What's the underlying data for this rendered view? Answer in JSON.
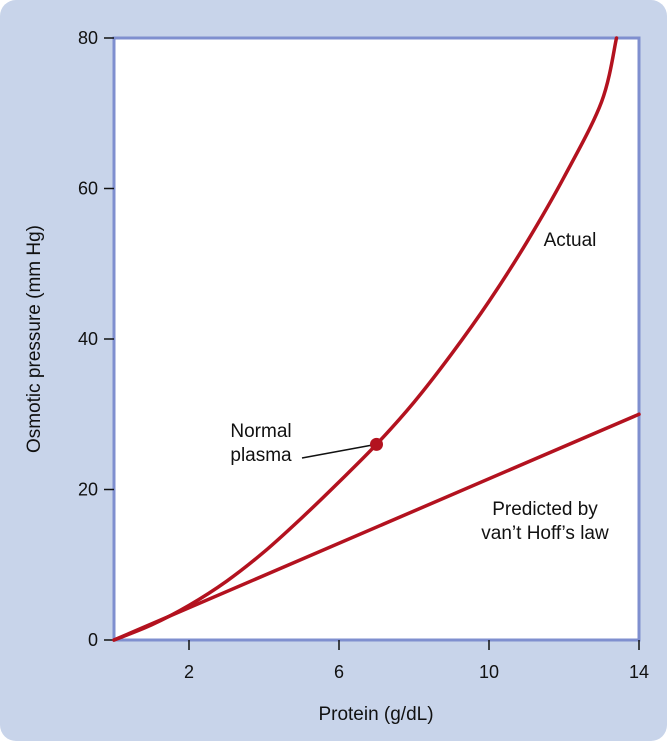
{
  "chart_data": {
    "type": "line",
    "title": "",
    "xlabel": "Protein (g/dL)",
    "ylabel": "Osmotic pressure (mm Hg)",
    "xlim": [
      0,
      14
    ],
    "ylim": [
      0,
      80
    ],
    "x_ticks": [
      2,
      6,
      10,
      14
    ],
    "y_ticks": [
      0,
      20,
      40,
      60,
      80
    ],
    "grid": false,
    "series": [
      {
        "name": "Actual",
        "color": "#b3121f",
        "points": [
          [
            0,
            0
          ],
          [
            1,
            2
          ],
          [
            2,
            4.6
          ],
          [
            3,
            7.8
          ],
          [
            4,
            11.7
          ],
          [
            5,
            16.2
          ],
          [
            6,
            21
          ],
          [
            7,
            26
          ],
          [
            8,
            31.6
          ],
          [
            9,
            38
          ],
          [
            10,
            45
          ],
          [
            11,
            52.8
          ],
          [
            12,
            61.5
          ],
          [
            13,
            71.5
          ],
          [
            13.4,
            80
          ]
        ]
      },
      {
        "name": "Predicted by van’t Hoff’s law",
        "color": "#b3121f",
        "points": [
          [
            0,
            0
          ],
          [
            14,
            30
          ]
        ]
      }
    ],
    "annotations": [
      {
        "text_lines": [
          "Normal",
          "plasma"
        ],
        "x": 7,
        "y": 26,
        "marker": true
      }
    ],
    "series_labels": [
      {
        "lines": [
          "Actual"
        ]
      },
      {
        "lines": [
          "Predicted by",
          "van’t Hoff’s law"
        ]
      }
    ],
    "colors": {
      "background": "#c8d4ea",
      "plot_border": "#7f8fcf",
      "plot_fill": "#ffffff",
      "line": "#b3121f"
    }
  }
}
